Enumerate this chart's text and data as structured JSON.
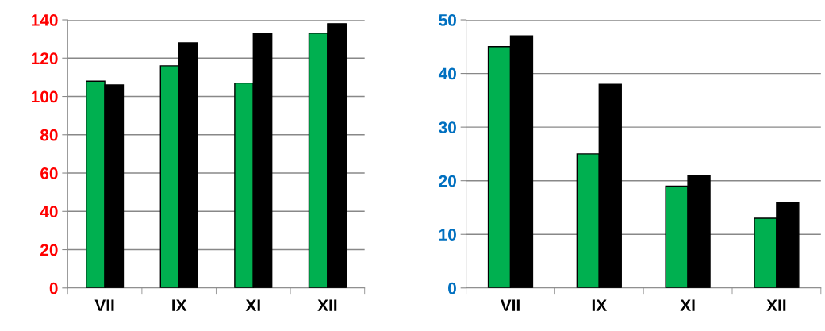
{
  "chart_data": [
    {
      "type": "bar",
      "categories": [
        "VII",
        "IX",
        "XI",
        "XII"
      ],
      "series": [
        {
          "color": "#00b050",
          "values": [
            108,
            116,
            107,
            133
          ]
        },
        {
          "color": "#000000",
          "values": [
            106,
            128,
            133,
            138
          ]
        }
      ],
      "ylim": [
        0,
        140
      ],
      "yticks": [
        0,
        20,
        40,
        60,
        80,
        100,
        120,
        140
      ],
      "grid": "y",
      "legend": false
    },
    {
      "type": "bar",
      "categories": [
        "VII",
        "IX",
        "XI",
        "XII"
      ],
      "series": [
        {
          "color": "#00b050",
          "values": [
            45,
            25,
            19,
            13
          ]
        },
        {
          "color": "#000000",
          "values": [
            47,
            38,
            21,
            16
          ]
        }
      ],
      "ylim": [
        0,
        50
      ],
      "yticks": [
        0,
        10,
        20,
        30,
        40,
        50
      ],
      "grid": "y",
      "legend": false
    }
  ]
}
